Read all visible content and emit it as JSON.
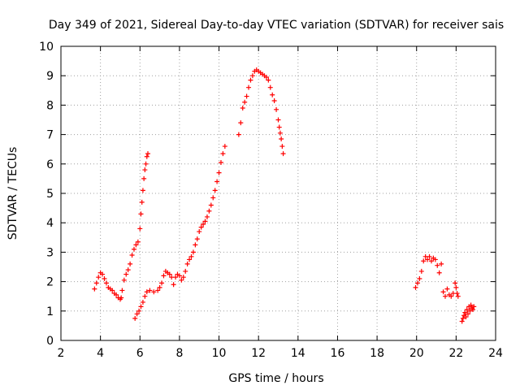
{
  "chart_data": {
    "type": "scatter",
    "title": "Day 349 of 2021, Sidereal Day-to-day VTEC variation (SDTVAR) for receiver sais",
    "xlabel": "GPS time / hours",
    "ylabel": "SDTVAR / TECUs",
    "xlim": [
      2,
      24
    ],
    "ylim": [
      0,
      10
    ],
    "xticks": [
      2,
      4,
      6,
      8,
      10,
      12,
      14,
      16,
      18,
      20,
      22,
      24
    ],
    "yticks": [
      0,
      1,
      2,
      3,
      4,
      5,
      6,
      7,
      8,
      9,
      10
    ],
    "grid": true,
    "marker": "+",
    "color": "#ff0000",
    "series": [
      {
        "name": "segment-1",
        "x": [
          3.7,
          3.8,
          3.9,
          4.0,
          4.1,
          4.2,
          4.3,
          4.4,
          4.5,
          4.6,
          4.7,
          4.8,
          4.9,
          5.0,
          5.05,
          5.1,
          5.2,
          5.3,
          5.4,
          5.5,
          5.6,
          5.7,
          5.8,
          5.9,
          6.0,
          6.05,
          6.1,
          6.15,
          6.2,
          6.25,
          6.3,
          6.35,
          6.4
        ],
        "y": [
          1.75,
          1.95,
          2.15,
          2.3,
          2.25,
          2.1,
          1.95,
          1.8,
          1.75,
          1.7,
          1.6,
          1.55,
          1.45,
          1.4,
          1.45,
          1.7,
          2.05,
          2.25,
          2.4,
          2.6,
          2.9,
          3.1,
          3.25,
          3.35,
          3.8,
          4.3,
          4.7,
          5.1,
          5.5,
          5.8,
          6.0,
          6.25,
          6.35
        ]
      },
      {
        "name": "segment-2",
        "x": [
          5.75,
          5.85,
          5.95,
          6.05,
          6.15,
          6.25,
          6.35,
          6.5,
          6.7,
          6.9,
          7.0,
          7.1,
          7.2,
          7.3,
          7.4,
          7.5,
          7.6,
          7.7,
          7.8,
          7.9,
          8.0,
          8.1,
          8.2,
          8.3,
          8.4,
          8.5,
          8.6,
          8.7,
          8.8,
          8.9,
          9.0,
          9.1,
          9.2,
          9.3,
          9.4,
          9.5,
          9.6,
          9.7,
          9.8,
          9.9,
          10.0,
          10.1,
          10.2,
          10.3
        ],
        "y": [
          0.75,
          0.9,
          1.0,
          1.15,
          1.3,
          1.5,
          1.65,
          1.7,
          1.65,
          1.7,
          1.8,
          1.95,
          2.2,
          2.35,
          2.3,
          2.25,
          2.15,
          1.9,
          2.15,
          2.25,
          2.2,
          2.05,
          2.15,
          2.35,
          2.6,
          2.75,
          2.85,
          3.0,
          3.25,
          3.45,
          3.7,
          3.85,
          3.95,
          4.05,
          4.2,
          4.4,
          4.6,
          4.85,
          5.1,
          5.4,
          5.7,
          6.05,
          6.35,
          6.6
        ]
      },
      {
        "name": "segment-3",
        "x": [
          11.0,
          11.1,
          11.2,
          11.3,
          11.4,
          11.5,
          11.6,
          11.7,
          11.8,
          11.9,
          12.0,
          12.1,
          12.2,
          12.3,
          12.4,
          12.5,
          12.6,
          12.7,
          12.8,
          12.9,
          13.0,
          13.05,
          13.1,
          13.15,
          13.2,
          13.25
        ],
        "y": [
          7.0,
          7.4,
          7.9,
          8.1,
          8.3,
          8.6,
          8.85,
          9.0,
          9.15,
          9.2,
          9.15,
          9.1,
          9.05,
          9.0,
          8.95,
          8.85,
          8.6,
          8.35,
          8.15,
          7.85,
          7.5,
          7.25,
          7.05,
          6.85,
          6.6,
          6.35
        ]
      },
      {
        "name": "segment-4",
        "x": [
          19.95,
          20.05,
          20.15,
          20.25,
          20.35,
          20.45,
          20.55,
          20.65,
          20.75,
          20.85,
          20.95,
          21.05,
          21.15,
          21.25,
          21.35,
          21.45,
          21.55,
          21.65,
          21.75,
          21.85,
          21.95,
          22.0,
          22.05,
          22.1
        ],
        "y": [
          1.8,
          1.95,
          2.1,
          2.35,
          2.7,
          2.85,
          2.75,
          2.85,
          2.7,
          2.8,
          2.75,
          2.55,
          2.3,
          2.6,
          1.65,
          1.5,
          1.75,
          1.55,
          1.5,
          1.6,
          1.95,
          1.8,
          1.6,
          1.5
        ]
      },
      {
        "name": "segment-5",
        "x": [
          22.3,
          22.35,
          22.4,
          22.45,
          22.5,
          22.55,
          22.6,
          22.65,
          22.7,
          22.75,
          22.8,
          22.85,
          22.9
        ],
        "y": [
          0.65,
          0.75,
          0.85,
          0.95,
          0.8,
          1.05,
          0.9,
          1.15,
          1.0,
          1.2,
          1.1,
          1.05,
          1.15
        ]
      }
    ]
  }
}
